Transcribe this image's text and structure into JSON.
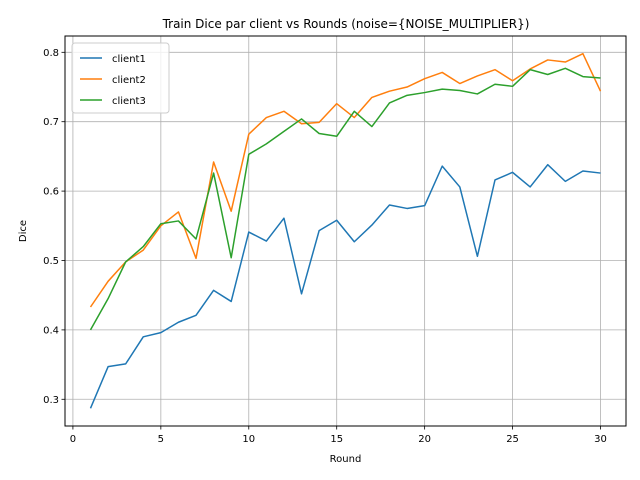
{
  "chart_data": {
    "type": "line",
    "title": "Train Dice par client vs Rounds (noise={NOISE_MULTIPLIER})",
    "xlabel": "Round",
    "ylabel": "Dice",
    "xlim": [
      -0.45,
      31.45
    ],
    "ylim": [
      0.2615,
      0.8235
    ],
    "xticks": [
      0,
      5,
      10,
      15,
      20,
      25,
      30
    ],
    "yticks": [
      0.3,
      0.4,
      0.5,
      0.6,
      0.7,
      0.8
    ],
    "grid": true,
    "legend_position": "top-left",
    "x": [
      1,
      2,
      3,
      4,
      5,
      6,
      7,
      8,
      9,
      10,
      11,
      12,
      13,
      14,
      15,
      16,
      17,
      18,
      19,
      20,
      21,
      22,
      23,
      24,
      25,
      26,
      27,
      28,
      29,
      30
    ],
    "series": [
      {
        "name": "client1",
        "color": "#1f77b4",
        "values": [
          0.287,
          0.347,
          0.351,
          0.39,
          0.396,
          0.411,
          0.421,
          0.457,
          0.441,
          0.541,
          0.528,
          0.561,
          0.452,
          0.543,
          0.558,
          0.527,
          0.551,
          0.58,
          0.575,
          0.579,
          0.636,
          0.606,
          0.506,
          0.616,
          0.627,
          0.606,
          0.638,
          0.614,
          0.629,
          0.626
        ]
      },
      {
        "name": "client2",
        "color": "#ff7f0e",
        "values": [
          0.433,
          0.47,
          0.498,
          0.515,
          0.55,
          0.57,
          0.503,
          0.642,
          0.571,
          0.682,
          0.706,
          0.715,
          0.697,
          0.699,
          0.726,
          0.706,
          0.735,
          0.744,
          0.75,
          0.762,
          0.771,
          0.755,
          0.766,
          0.775,
          0.759,
          0.776,
          0.789,
          0.786,
          0.798,
          0.744
        ]
      },
      {
        "name": "client3",
        "color": "#2ca02c",
        "values": [
          0.4,
          0.445,
          0.498,
          0.52,
          0.553,
          0.557,
          0.531,
          0.626,
          0.504,
          0.653,
          0.668,
          0.686,
          0.704,
          0.683,
          0.679,
          0.715,
          0.693,
          0.727,
          0.738,
          0.742,
          0.747,
          0.745,
          0.74,
          0.754,
          0.751,
          0.775,
          0.768,
          0.777,
          0.765,
          0.763
        ]
      }
    ]
  }
}
